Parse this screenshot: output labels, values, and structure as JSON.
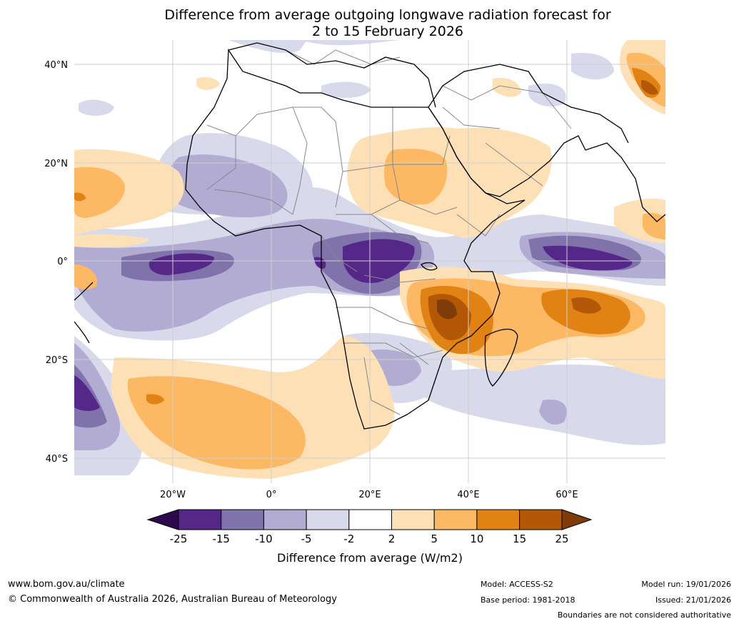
{
  "title": {
    "line1": "Difference from average outgoing longwave radiation forecast for",
    "line2": "2 to 15 February 2026"
  },
  "map": {
    "lat_labels": [
      "40°N",
      "20°N",
      "0°",
      "20°S",
      "40°S"
    ],
    "lon_labels": [
      "20°W",
      "0°",
      "20°E",
      "40°E",
      "60°E"
    ],
    "region": "Africa and Indian Ocean"
  },
  "colorbar": {
    "ticks": [
      "-25",
      "-15",
      "-10",
      "-5",
      "-2",
      "2",
      "5",
      "10",
      "15",
      "25"
    ],
    "label": "Difference from average (W/m2)",
    "colors": {
      "below_-25": "#2d0a4e",
      "-25_-15": "#542788",
      "-15_-10": "#8073ac",
      "-10_-5": "#b2abd2",
      "-5_-2": "#d8daeb",
      "-2_2": "#ffffff",
      "2_5": "#fee0b6",
      "5_10": "#fdb863",
      "10_15": "#e08214",
      "15_25": "#b35806",
      "above_25": "#7f3b08"
    }
  },
  "footer": {
    "website": "www.bom.gov.au/climate",
    "copyright": "© Commonwealth of Australia 2026, Australian Bureau of Meteorology",
    "model": "Model: ACCESS-S2",
    "base_period": "Base period: 1981-2018",
    "model_run": "Model run: 19/01/2026",
    "issued": "Issued: 21/01/2026",
    "disclaimer": "Boundaries are not considered authoritative"
  }
}
